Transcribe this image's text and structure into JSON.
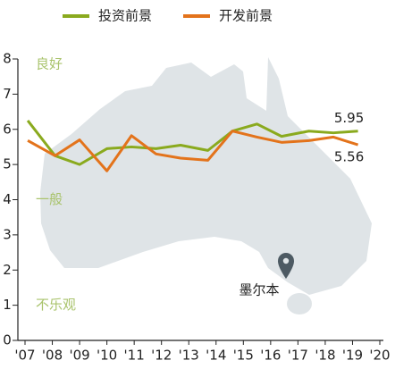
{
  "chart_data": {
    "type": "line",
    "x": [
      2007.1,
      2008.1,
      2009.0,
      2010.0,
      2010.9,
      2011.8,
      2012.7,
      2013.7,
      2014.6,
      2015.5,
      2016.4,
      2017.4,
      2018.3,
      2019.2
    ],
    "series": [
      {
        "name": "投资前景",
        "color": "#8aaa1e",
        "values": [
          6.25,
          5.25,
          5.0,
          5.45,
          5.5,
          5.45,
          5.55,
          5.4,
          5.95,
          6.15,
          5.8,
          5.95,
          5.9,
          5.95
        ]
      },
      {
        "name": "开发前景",
        "color": "#e3731b",
        "values": [
          5.68,
          5.25,
          5.7,
          4.82,
          5.82,
          5.3,
          5.18,
          5.12,
          5.95,
          5.78,
          5.63,
          5.68,
          5.78,
          5.56
        ]
      }
    ],
    "xlim": [
      2007,
      2020
    ],
    "xticks": [
      {
        "value": 2007,
        "label": "'07"
      },
      {
        "value": 2008,
        "label": "'08"
      },
      {
        "value": 2009,
        "label": "'09"
      },
      {
        "value": 2010,
        "label": "'10"
      },
      {
        "value": 2011,
        "label": "'11"
      },
      {
        "value": 2012,
        "label": "'12"
      },
      {
        "value": 2013,
        "label": "'13"
      },
      {
        "value": 2014,
        "label": "'14"
      },
      {
        "value": 2015,
        "label": "'15"
      },
      {
        "value": 2016,
        "label": "'16"
      },
      {
        "value": 2017,
        "label": "'17"
      },
      {
        "value": 2018,
        "label": "'18"
      },
      {
        "value": 2019,
        "label": "'19"
      },
      {
        "value": 2020,
        "label": "'20"
      }
    ],
    "ylim": [
      0,
      8
    ],
    "yticks": [
      0,
      1,
      2,
      3,
      4,
      5,
      6,
      7,
      8
    ],
    "annotations": [
      "良好",
      "一般",
      "不乐观"
    ],
    "map_label": "墨尔本"
  }
}
